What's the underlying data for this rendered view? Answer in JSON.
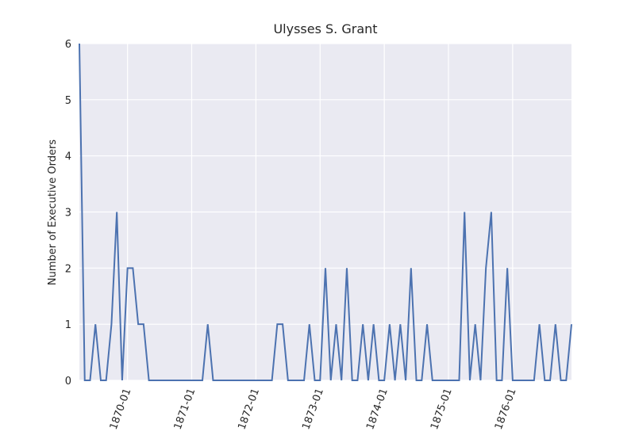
{
  "chart_data": {
    "type": "line",
    "title": "Ulysses S. Grant",
    "y_label": "Number of Executive Orders",
    "x": [
      "1869-04",
      "1869-05",
      "1869-06",
      "1869-07",
      "1869-08",
      "1869-09",
      "1869-10",
      "1869-11",
      "1869-12",
      "1870-01",
      "1870-02",
      "1870-03",
      "1870-04",
      "1870-05",
      "1870-06",
      "1870-07",
      "1870-08",
      "1870-09",
      "1870-10",
      "1870-11",
      "1870-12",
      "1871-01",
      "1871-02",
      "1871-03",
      "1871-04",
      "1871-05",
      "1871-06",
      "1871-07",
      "1871-08",
      "1871-09",
      "1871-10",
      "1871-11",
      "1871-12",
      "1872-01",
      "1872-02",
      "1872-03",
      "1872-04",
      "1872-05",
      "1872-06",
      "1872-07",
      "1872-08",
      "1872-09",
      "1872-10",
      "1872-11",
      "1872-12",
      "1873-01",
      "1873-02",
      "1873-03",
      "1873-04",
      "1873-05",
      "1873-06",
      "1873-07",
      "1873-08",
      "1873-09",
      "1873-10",
      "1873-11",
      "1873-12",
      "1874-01",
      "1874-02",
      "1874-03",
      "1874-04",
      "1874-05",
      "1874-06",
      "1874-07",
      "1874-08",
      "1874-09",
      "1874-10",
      "1874-11",
      "1874-12",
      "1875-01",
      "1875-02",
      "1875-03",
      "1875-04",
      "1875-05",
      "1875-06",
      "1875-07",
      "1875-08",
      "1875-09",
      "1875-10",
      "1875-11",
      "1875-12",
      "1876-01",
      "1876-02",
      "1876-03",
      "1876-04",
      "1876-05",
      "1876-06",
      "1876-07",
      "1876-08",
      "1876-09",
      "1876-10",
      "1876-11",
      "1876-12"
    ],
    "series": [
      {
        "color": "#4c72b0",
        "values": [
          6,
          0,
          0,
          1,
          0,
          0,
          1,
          3,
          0,
          2,
          2,
          1,
          1,
          0,
          0,
          0,
          0,
          0,
          0,
          0,
          0,
          0,
          0,
          0,
          1,
          0,
          0,
          0,
          0,
          0,
          0,
          0,
          0,
          0,
          0,
          0,
          0,
          1,
          1,
          0,
          0,
          0,
          0,
          1,
          0,
          0,
          2,
          0,
          1,
          0,
          2,
          0,
          0,
          1,
          0,
          1,
          0,
          0,
          1,
          0,
          1,
          0,
          2,
          0,
          0,
          1,
          0,
          0,
          0,
          0,
          0,
          0,
          3,
          0,
          1,
          0,
          2,
          3,
          0,
          0,
          2,
          0,
          0,
          0,
          0,
          0,
          1,
          0,
          0,
          1,
          0,
          0,
          1
        ]
      }
    ],
    "xticks": [
      "1870-01",
      "1871-01",
      "1872-01",
      "1873-01",
      "1874-01",
      "1875-01",
      "1876-01"
    ],
    "ylim": [
      0,
      6
    ],
    "yticks": [
      0,
      1,
      2,
      3,
      4,
      5,
      6
    ],
    "grid": true
  }
}
